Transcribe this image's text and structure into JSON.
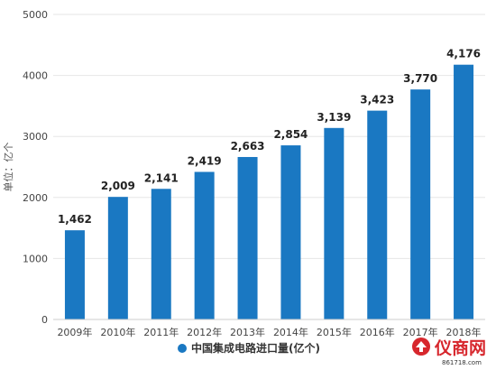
{
  "chart_data": {
    "type": "bar",
    "categories": [
      "2009年",
      "2010年",
      "2011年",
      "2012年",
      "2013年",
      "2014年",
      "2015年",
      "2016年",
      "2017年",
      "2018年"
    ],
    "values": [
      1462,
      2009,
      2141,
      2419,
      2663,
      2854,
      3139,
      3423,
      3770,
      4176
    ],
    "data_labels": [
      "1,462",
      "2,009",
      "2,141",
      "2,419",
      "2,663",
      "2,854",
      "3,139",
      "3,423",
      "3,770",
      "4,176"
    ],
    "ylabel": "单位：亿个",
    "ylim": [
      0,
      5000
    ],
    "yticks": [
      0,
      1000,
      2000,
      3000,
      4000,
      5000
    ],
    "grid": true,
    "legend": {
      "position": "bottom",
      "entries": [
        "中国集成电路进口量(亿个)"
      ]
    },
    "bar_color": "#1a78c2"
  },
  "logo": {
    "name": "仪商网",
    "sub": "861718.com"
  }
}
